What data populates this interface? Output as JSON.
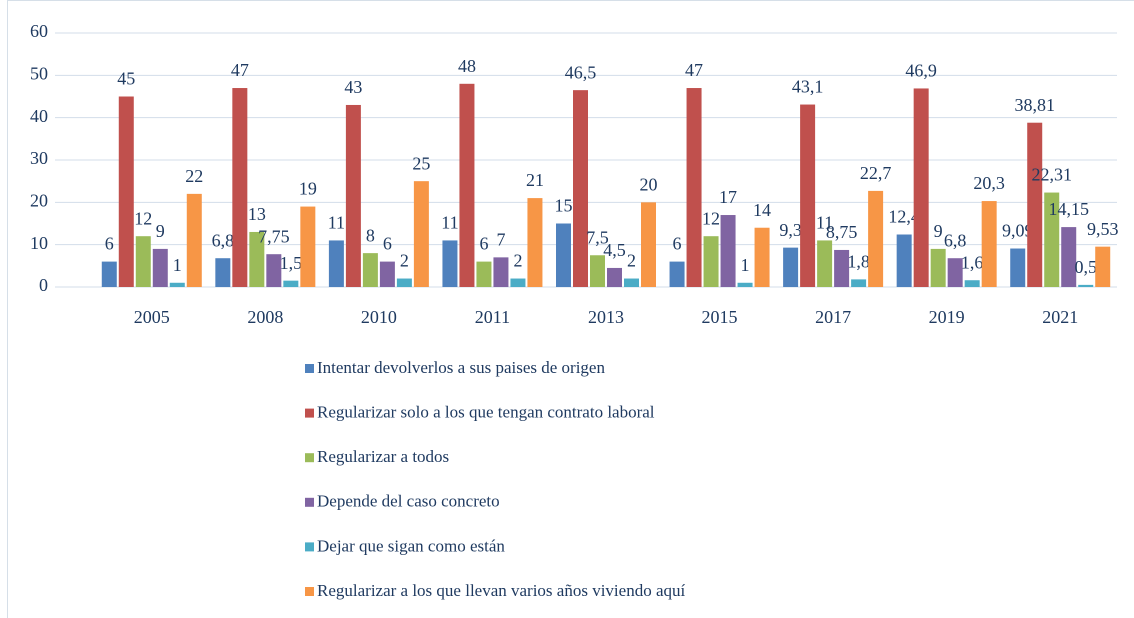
{
  "chart_data": {
    "type": "bar",
    "categories": [
      "2005",
      "2008",
      "2010",
      "2011",
      "2013",
      "2015",
      "2017",
      "2019",
      "2021"
    ],
    "series": [
      {
        "name": "Intentar devolverlos a sus paises de origen",
        "color": "#4f81bd",
        "values": [
          6,
          6.8,
          11,
          11,
          15,
          6,
          9.3,
          12.4,
          9.09
        ],
        "value_labels": [
          "6",
          "6,8",
          "11",
          "11",
          "15",
          "6",
          "9,3",
          "12,4",
          "9,09"
        ]
      },
      {
        "name": "Regularizar solo a los que tengan contrato laboral",
        "color": "#c0504d",
        "values": [
          45,
          47,
          43,
          48,
          46.5,
          47,
          43.1,
          46.9,
          38.81
        ],
        "value_labels": [
          "45",
          "47",
          "43",
          "48",
          "46,5",
          "47",
          "43,1",
          "46,9",
          "38,81"
        ]
      },
      {
        "name": "Regularizar a todos",
        "color": "#9bbb59",
        "values": [
          12,
          13,
          8,
          6,
          7.5,
          12,
          11,
          9,
          22.31
        ],
        "value_labels": [
          "12",
          "13",
          "8",
          "6",
          "7,5",
          "12",
          "11",
          "9",
          "22,31"
        ]
      },
      {
        "name": "Depende del caso concreto",
        "color": "#8064a2",
        "values": [
          9,
          7.75,
          6,
          7,
          4.5,
          17,
          8.75,
          6.8,
          14.15
        ],
        "value_labels": [
          "9",
          "7,75",
          "6",
          "7",
          "4,5",
          "17",
          "8,75",
          "6,8",
          "14,15"
        ]
      },
      {
        "name": "Dejar que sigan como están",
        "color": "#4bacc6",
        "values": [
          1,
          1.5,
          2,
          2,
          2,
          1,
          1.8,
          1.6,
          0.5
        ],
        "value_labels": [
          "1",
          "1,5",
          "2",
          "2",
          "2",
          "1",
          "1,8",
          "1,6",
          "0,5"
        ]
      },
      {
        "name": "Regularizar a los que llevan varios años viviendo aquí",
        "color": "#f79646",
        "values": [
          22,
          19,
          25,
          21,
          20,
          14,
          22.7,
          20.3,
          9.53
        ],
        "value_labels": [
          "22",
          "19",
          "25",
          "21",
          "20",
          "14",
          "22,7",
          "20,3",
          "9,53"
        ]
      }
    ],
    "ylim": [
      0,
      60
    ],
    "yticks": [
      0,
      10,
      20,
      30,
      40,
      50,
      60
    ],
    "grid": true,
    "legend": "bottom"
  }
}
